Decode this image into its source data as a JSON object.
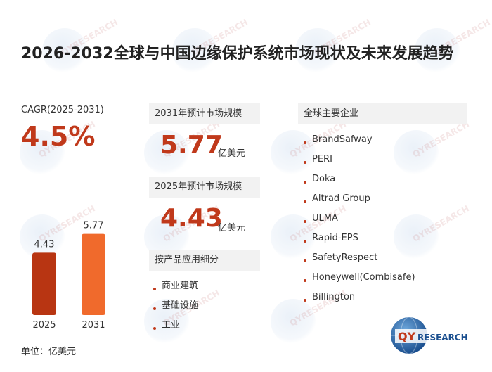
{
  "title": "2026-2032全球与中国边缘保护系统市场现状及未来发展趋势",
  "cagr": {
    "label": "CAGR(2025-2031)",
    "value": "4.5%"
  },
  "forecast_2031": {
    "label": "2031年预计市场规模",
    "value": "5.77",
    "unit": "亿美元"
  },
  "forecast_2025": {
    "label": "2025年预计市场规模",
    "value": "4.43",
    "unit": "亿美元"
  },
  "applications": {
    "header": "按产品应用细分",
    "items": [
      "商业建筑",
      "基础设施",
      "工业"
    ]
  },
  "companies": {
    "header": "全球主要企业",
    "items": [
      "BrandSafway",
      "PERI",
      "Doka",
      "Altrad Group",
      "ULMA",
      "Rapid-EPS",
      "SafetyRespect",
      "Honeywell(Combisafe)",
      "Billington"
    ]
  },
  "unit_note": "单位：亿美元",
  "logo": {
    "text_qy": "QY",
    "text_research": "RESEARCH",
    "colors": {
      "qy": "#c0391b",
      "research": "#1a4f8f"
    }
  },
  "watermark": {
    "text": "QYRESEARCH"
  },
  "colors": {
    "accent": "#c0391b",
    "bar_2025": "#b83512",
    "bar_2031": "#f06a2c"
  },
  "chart_data": {
    "type": "bar",
    "categories": [
      "2025",
      "2031"
    ],
    "values": [
      4.43,
      5.77
    ],
    "value_labels": [
      "4.43",
      "5.77"
    ],
    "ylim": [
      0,
      6
    ],
    "xlabel": "",
    "ylabel": ""
  }
}
